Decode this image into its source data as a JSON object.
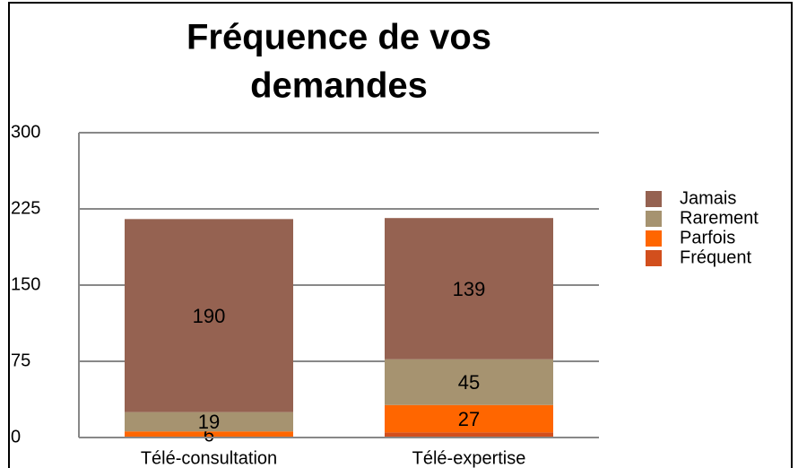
{
  "chart_data": {
    "type": "stacked_bar",
    "title_lines": [
      "Fréquence de vos",
      "demandes"
    ],
    "categories": [
      "Télé-consultation",
      "Télé-expertise"
    ],
    "series": [
      {
        "name": "Fréquent",
        "color": "#d24f1d",
        "values": [
          0,
          5
        ],
        "show_labels": false
      },
      {
        "name": "Parfois",
        "color": "#ff6600",
        "values": [
          6,
          27
        ],
        "show_labels": true
      },
      {
        "name": "Rarement",
        "color": "#a69370",
        "values": [
          19,
          45
        ],
        "show_labels": true
      },
      {
        "name": "Jamais",
        "color": "#956251",
        "values": [
          190,
          139
        ],
        "show_labels": true
      }
    ],
    "ylim": [
      0,
      300
    ],
    "yticks": [
      0,
      75,
      150,
      225,
      300
    ],
    "grid": true,
    "legend": "right"
  }
}
